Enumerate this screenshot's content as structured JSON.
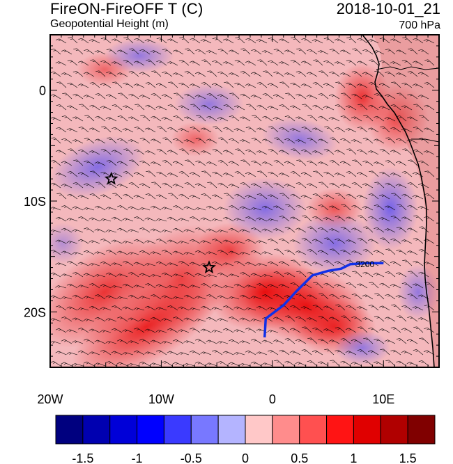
{
  "header": {
    "title_left": "FireON-FireOFF T (C)",
    "title_right": "2018-10-01_21",
    "subtitle_left": "Geopotential Height (m)",
    "subtitle_right": "700 hPa"
  },
  "chart_data": {
    "type": "heatmap",
    "title": "FireON-FireOFF T (C)",
    "subtitle": "Geopotential Height (m)",
    "level": "700 hPa",
    "time": "2018-10-01_21",
    "x_axis": {
      "range": [
        -20,
        15
      ],
      "ticks": [
        -20,
        -10,
        0,
        10
      ],
      "tick_labels": [
        "20W",
        "10W",
        "0",
        "10E"
      ]
    },
    "y_axis": {
      "range": [
        -25,
        5
      ],
      "ticks": [
        0,
        -10,
        -20
      ],
      "tick_labels": [
        "0",
        "10S",
        "20S"
      ]
    },
    "colorbar": {
      "levels": [
        -1.75,
        -1.5,
        -1.25,
        -1,
        -0.75,
        -0.5,
        -0.25,
        0,
        0.25,
        0.5,
        0.75,
        1,
        1.25,
        1.5,
        1.75
      ],
      "labels": [
        "-1.5",
        "-1",
        "-0.5",
        "0",
        "0.5",
        "1",
        "1.5"
      ],
      "label_values": [
        -1.5,
        -1,
        -0.5,
        0,
        0.5,
        1,
        1.5
      ],
      "colors": [
        "#00007f",
        "#0000b0",
        "#0000d8",
        "#0000ff",
        "#3a3aff",
        "#7878ff",
        "#b4b4ff",
        "#ffc8c8",
        "#ff8c8c",
        "#ff5050",
        "#ff1414",
        "#e00000",
        "#b00000",
        "#800000"
      ]
    },
    "contour": {
      "value": 3200,
      "label": "3200",
      "path_lonlat": [
        [
          -0.7,
          -22.3
        ],
        [
          -0.6,
          -20.6
        ],
        [
          1,
          -19.4
        ],
        [
          2.2,
          -18.1
        ],
        [
          3.6,
          -16.7
        ],
        [
          5,
          -16.3
        ],
        [
          6.2,
          -16.1
        ],
        [
          7,
          -15.7
        ],
        [
          8.5,
          -15.6
        ],
        [
          10,
          -15.6
        ]
      ]
    },
    "markers": [
      {
        "symbol": "star",
        "lon": -14.5,
        "lat": -8
      },
      {
        "symbol": "star",
        "lon": -5.7,
        "lat": -16
      }
    ],
    "features": [
      "wind barbs",
      "coastline of Africa"
    ]
  }
}
